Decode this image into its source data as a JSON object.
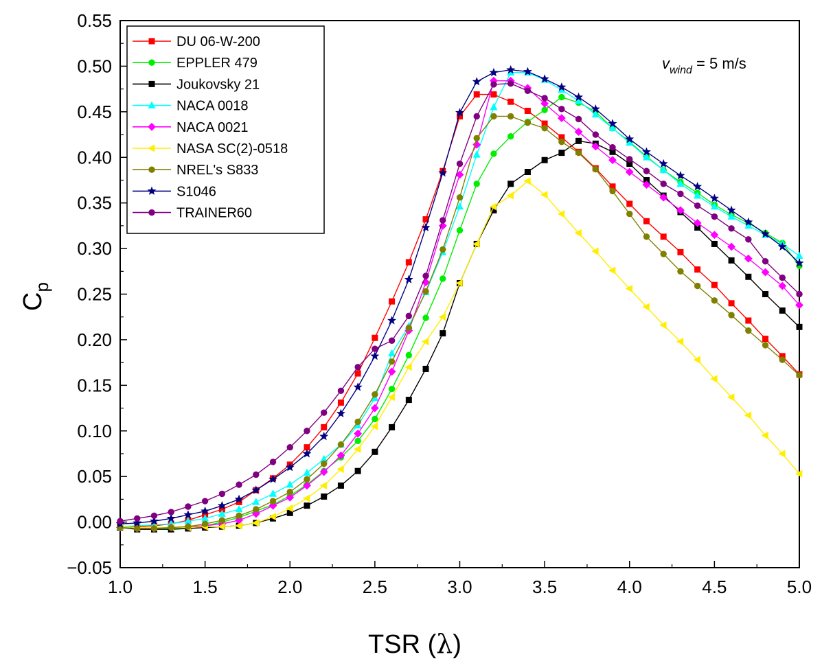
{
  "chart_data": {
    "type": "line",
    "title": "",
    "xlabel_text": "TSR (",
    "xlabel_symbol": "λ",
    "xlabel_close": ")",
    "ylabel_main": "C",
    "ylabel_sub": "p",
    "xlim": [
      1.0,
      5.0
    ],
    "ylim": [
      -0.05,
      0.55
    ],
    "xticks": [
      "1.0",
      "1.5",
      "2.0",
      "2.5",
      "3.0",
      "3.5",
      "4.0",
      "4.5",
      "5.0"
    ],
    "yticks": [
      "−0.05",
      "0.00",
      "0.05",
      "0.10",
      "0.15",
      "0.20",
      "0.25",
      "0.30",
      "0.35",
      "0.40",
      "0.45",
      "0.50",
      "0.55"
    ],
    "annotation": {
      "var": "v",
      "sub": "wind",
      "rest": " = 5 m/s"
    },
    "legend_position": "top-left",
    "x": [
      1.0,
      1.1,
      1.2,
      1.3,
      1.4,
      1.5,
      1.6,
      1.7,
      1.8,
      1.9,
      2.0,
      2.1,
      2.2,
      2.3,
      2.4,
      2.5,
      2.6,
      2.7,
      2.8,
      2.9,
      3.0,
      3.1,
      3.2,
      3.3,
      3.4,
      3.5,
      3.6,
      3.7,
      3.8,
      3.9,
      4.0,
      4.1,
      4.2,
      4.3,
      4.4,
      4.5,
      4.6,
      4.7,
      4.8,
      4.9,
      5.0
    ],
    "series": [
      {
        "name": "DU 06-W-200",
        "color": "#ff0000",
        "marker": "square",
        "values": [
          -0.005,
          -0.005,
          -0.004,
          -0.002,
          0.002,
          0.008,
          0.014,
          0.022,
          0.035,
          0.048,
          0.063,
          0.082,
          0.104,
          0.131,
          0.163,
          0.202,
          0.242,
          0.285,
          0.332,
          0.385,
          0.445,
          0.469,
          0.469,
          0.461,
          0.451,
          0.437,
          0.422,
          0.406,
          0.388,
          0.368,
          0.349,
          0.33,
          0.313,
          0.296,
          0.277,
          0.26,
          0.24,
          0.221,
          0.201,
          0.182,
          0.162
        ]
      },
      {
        "name": "EPPLER 479",
        "color": "#00ee00",
        "marker": "circle",
        "values": [
          -0.005,
          -0.006,
          -0.007,
          -0.007,
          -0.006,
          -0.004,
          0.0,
          0.005,
          0.012,
          0.019,
          0.029,
          0.041,
          0.056,
          0.071,
          0.089,
          0.113,
          0.146,
          0.183,
          0.224,
          0.267,
          0.32,
          0.371,
          0.404,
          0.423,
          0.439,
          0.452,
          0.466,
          0.46,
          0.45,
          0.432,
          0.417,
          0.401,
          0.386,
          0.373,
          0.361,
          0.348,
          0.337,
          0.328,
          0.317,
          0.306,
          0.281
        ]
      },
      {
        "name": "Joukovsky 21",
        "color": "#000000",
        "marker": "square",
        "values": [
          -0.006,
          -0.008,
          -0.008,
          -0.008,
          -0.007,
          -0.006,
          -0.005,
          -0.004,
          -0.001,
          0.004,
          0.01,
          0.018,
          0.028,
          0.04,
          0.056,
          0.077,
          0.104,
          0.134,
          0.168,
          0.207,
          0.262,
          0.305,
          0.342,
          0.371,
          0.384,
          0.397,
          0.405,
          0.418,
          0.415,
          0.406,
          0.393,
          0.375,
          0.358,
          0.34,
          0.323,
          0.305,
          0.287,
          0.269,
          0.25,
          0.232,
          0.214
        ]
      },
      {
        "name": "NACA 0018",
        "color": "#00ffff",
        "marker": "triangle-up",
        "values": [
          -0.005,
          -0.004,
          -0.003,
          -0.002,
          0.001,
          0.004,
          0.009,
          0.014,
          0.022,
          0.031,
          0.041,
          0.054,
          0.069,
          0.085,
          0.106,
          0.136,
          0.185,
          0.215,
          0.252,
          0.296,
          0.346,
          0.403,
          0.455,
          0.493,
          0.493,
          0.485,
          0.474,
          0.462,
          0.447,
          0.432,
          0.416,
          0.4,
          0.386,
          0.371,
          0.358,
          0.346,
          0.335,
          0.325,
          0.315,
          0.305,
          0.292
        ]
      },
      {
        "name": "NACA 0021",
        "color": "#ff00ff",
        "marker": "diamond",
        "values": [
          -0.006,
          -0.007,
          -0.007,
          -0.006,
          -0.005,
          -0.004,
          -0.002,
          0.002,
          0.009,
          0.018,
          0.027,
          0.04,
          0.055,
          0.073,
          0.097,
          0.125,
          0.165,
          0.21,
          0.263,
          0.325,
          0.381,
          0.414,
          0.484,
          0.484,
          0.476,
          0.459,
          0.443,
          0.428,
          0.412,
          0.397,
          0.384,
          0.37,
          0.356,
          0.342,
          0.328,
          0.315,
          0.302,
          0.289,
          0.274,
          0.259,
          0.238
        ]
      },
      {
        "name": "NASA SC(2)-0518",
        "color": "#ffee00",
        "marker": "triangle-left",
        "values": [
          -0.005,
          -0.006,
          -0.006,
          -0.006,
          -0.006,
          -0.005,
          -0.005,
          -0.004,
          -0.001,
          0.006,
          0.015,
          0.026,
          0.04,
          0.058,
          0.08,
          0.105,
          0.137,
          0.17,
          0.198,
          0.225,
          0.262,
          0.305,
          0.346,
          0.358,
          0.374,
          0.359,
          0.338,
          0.317,
          0.297,
          0.276,
          0.256,
          0.236,
          0.216,
          0.198,
          0.178,
          0.157,
          0.137,
          0.117,
          0.095,
          0.075,
          0.053
        ]
      },
      {
        "name": "NREL's S833",
        "color": "#808000",
        "marker": "circle",
        "values": [
          -0.006,
          -0.007,
          -0.007,
          -0.006,
          -0.005,
          -0.002,
          0.002,
          0.007,
          0.014,
          0.023,
          0.033,
          0.047,
          0.064,
          0.085,
          0.11,
          0.14,
          0.176,
          0.213,
          0.253,
          0.299,
          0.356,
          0.421,
          0.445,
          0.445,
          0.438,
          0.432,
          0.417,
          0.405,
          0.387,
          0.363,
          0.338,
          0.313,
          0.294,
          0.275,
          0.259,
          0.243,
          0.227,
          0.21,
          0.194,
          0.178,
          0.161
        ]
      },
      {
        "name": "S1046",
        "color": "#000080",
        "marker": "star",
        "values": [
          -0.002,
          -0.001,
          0.001,
          0.004,
          0.008,
          0.012,
          0.018,
          0.025,
          0.035,
          0.047,
          0.06,
          0.075,
          0.094,
          0.119,
          0.148,
          0.182,
          0.221,
          0.266,
          0.323,
          0.383,
          0.449,
          0.483,
          0.493,
          0.496,
          0.494,
          0.486,
          0.477,
          0.466,
          0.453,
          0.437,
          0.42,
          0.406,
          0.393,
          0.38,
          0.368,
          0.355,
          0.342,
          0.329,
          0.316,
          0.302,
          0.284
        ]
      },
      {
        "name": "TRAINER60",
        "color": "#800080",
        "marker": "circle",
        "values": [
          0.001,
          0.004,
          0.007,
          0.011,
          0.017,
          0.023,
          0.031,
          0.041,
          0.052,
          0.066,
          0.082,
          0.1,
          0.12,
          0.144,
          0.17,
          0.19,
          0.199,
          0.226,
          0.27,
          0.331,
          0.393,
          0.445,
          0.48,
          0.481,
          0.473,
          0.465,
          0.453,
          0.442,
          0.425,
          0.411,
          0.398,
          0.385,
          0.371,
          0.36,
          0.347,
          0.335,
          0.322,
          0.31,
          0.286,
          0.268,
          0.25
        ]
      }
    ]
  }
}
